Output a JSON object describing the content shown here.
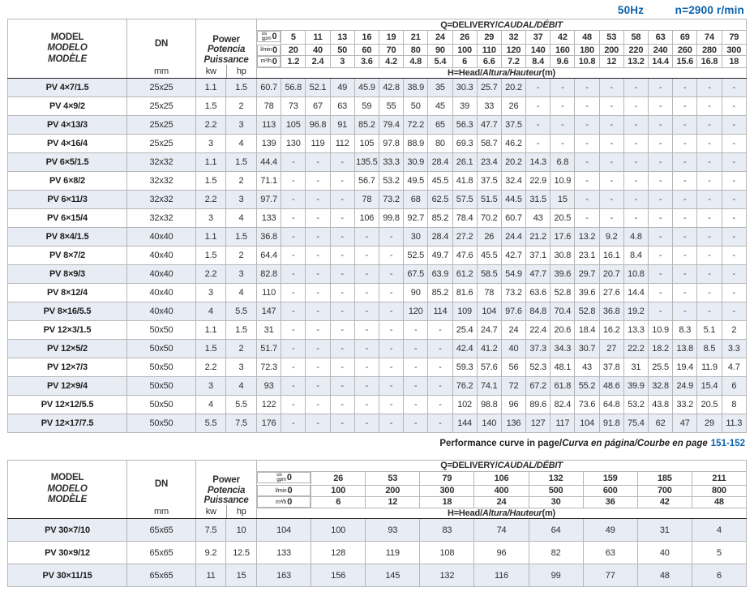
{
  "page": {
    "frequency": "50Hz",
    "speed": "n=2900 r/min"
  },
  "colors": {
    "accent_blue": "#0b62ab",
    "row_shade": "#e8ecf4"
  },
  "labels": {
    "model_lines": [
      "MODEL",
      "MODELO",
      "MODÈLE"
    ],
    "dn": "DN",
    "dn_unit": "mm",
    "power_lines": [
      "Power",
      "Potencia",
      "Puissance"
    ],
    "kw": "kw",
    "hp": "hp",
    "q_title_main": "Q=DELIVERY/",
    "q_title_alt": "CAUDAL/DÉBIT",
    "h_title_main": "H=Head/",
    "h_title_alt": "Altura/Hauteur",
    "h_title_unit": "(m)",
    "unit_gpm_top": "us",
    "unit_gpm": "gpm",
    "unit_lmin": "l/min",
    "unit_m3h": "m³/h"
  },
  "table1": {
    "flow_gpm": [
      "0",
      "5",
      "11",
      "13",
      "16",
      "19",
      "21",
      "24",
      "26",
      "29",
      "32",
      "37",
      "42",
      "48",
      "53",
      "58",
      "63",
      "69",
      "74",
      "79"
    ],
    "flow_lmin": [
      "0",
      "20",
      "40",
      "50",
      "60",
      "70",
      "80",
      "90",
      "100",
      "110",
      "120",
      "140",
      "160",
      "180",
      "200",
      "220",
      "240",
      "260",
      "280",
      "300"
    ],
    "flow_m3h": [
      "0",
      "1.2",
      "2.4",
      "3",
      "3.6",
      "4.2",
      "4.8",
      "5.4",
      "6",
      "6.6",
      "7.2",
      "8.4",
      "9.6",
      "10.8",
      "12",
      "13.2",
      "14.4",
      "15.6",
      "16.8",
      "18"
    ],
    "rows": [
      {
        "model": "PV 4×7/1.5",
        "dn": "25x25",
        "kw": "1.1",
        "hp": "1.5",
        "heads": [
          "60.7",
          "56.8",
          "52.1",
          "49",
          "45.9",
          "42.8",
          "38.9",
          "35",
          "30.3",
          "25.7",
          "20.2",
          "-",
          "-",
          "-",
          "-",
          "-",
          "-",
          "-",
          "-",
          "-"
        ]
      },
      {
        "model": "PV 4×9/2",
        "dn": "25x25",
        "kw": "1.5",
        "hp": "2",
        "heads": [
          "78",
          "73",
          "67",
          "63",
          "59",
          "55",
          "50",
          "45",
          "39",
          "33",
          "26",
          "-",
          "-",
          "-",
          "-",
          "-",
          "-",
          "-",
          "-",
          "-"
        ]
      },
      {
        "model": "PV 4×13/3",
        "dn": "25x25",
        "kw": "2.2",
        "hp": "3",
        "heads": [
          "113",
          "105",
          "96.8",
          "91",
          "85.2",
          "79.4",
          "72.2",
          "65",
          "56.3",
          "47.7",
          "37.5",
          "-",
          "-",
          "-",
          "-",
          "-",
          "-",
          "-",
          "-",
          "-"
        ]
      },
      {
        "model": "PV 4×16/4",
        "dn": "25x25",
        "kw": "3",
        "hp": "4",
        "heads": [
          "139",
          "130",
          "119",
          "112",
          "105",
          "97.8",
          "88.9",
          "80",
          "69.3",
          "58.7",
          "46.2",
          "-",
          "-",
          "-",
          "-",
          "-",
          "-",
          "-",
          "-",
          "-"
        ]
      },
      {
        "model": "PV 6×5/1.5",
        "dn": "32x32",
        "kw": "1.1",
        "hp": "1.5",
        "group_start": true,
        "heads": [
          "44.4",
          "-",
          "-",
          "-",
          "135.5",
          "33.3",
          "30.9",
          "28.4",
          "26.1",
          "23.4",
          "20.2",
          "14.3",
          "6.8",
          "-",
          "-",
          "-",
          "-",
          "-",
          "-",
          "-"
        ]
      },
      {
        "model": "PV 6×8/2",
        "dn": "32x32",
        "kw": "1.5",
        "hp": "2",
        "heads": [
          "71.1",
          "-",
          "-",
          "-",
          "56.7",
          "53.2",
          "49.5",
          "45.5",
          "41.8",
          "37.5",
          "32.4",
          "22.9",
          "10.9",
          "-",
          "-",
          "-",
          "-",
          "-",
          "-",
          "-"
        ]
      },
      {
        "model": "PV 6×11/3",
        "dn": "32x32",
        "kw": "2.2",
        "hp": "3",
        "heads": [
          "97.7",
          "-",
          "-",
          "-",
          "78",
          "73.2",
          "68",
          "62.5",
          "57.5",
          "51.5",
          "44.5",
          "31.5",
          "15",
          "-",
          "-",
          "-",
          "-",
          "-",
          "-",
          "-"
        ]
      },
      {
        "model": "PV 6×15/4",
        "dn": "32x32",
        "kw": "3",
        "hp": "4",
        "heads": [
          "133",
          "-",
          "-",
          "-",
          "106",
          "99.8",
          "92.7",
          "85.2",
          "78.4",
          "70.2",
          "60.7",
          "43",
          "20.5",
          "-",
          "-",
          "-",
          "-",
          "-",
          "-",
          "-"
        ]
      },
      {
        "model": "PV 8×4/1.5",
        "dn": "40x40",
        "kw": "1.1",
        "hp": "1.5",
        "group_start": true,
        "heads": [
          "36.8",
          "-",
          "-",
          "-",
          "-",
          "-",
          "30",
          "28.4",
          "27.2",
          "26",
          "24.4",
          "21.2",
          "17.6",
          "13.2",
          "9.2",
          "4.8",
          "-",
          "-",
          "-",
          "-"
        ]
      },
      {
        "model": "PV 8×7/2",
        "dn": "40x40",
        "kw": "1.5",
        "hp": "2",
        "heads": [
          "64.4",
          "-",
          "-",
          "-",
          "-",
          "-",
          "52.5",
          "49.7",
          "47.6",
          "45.5",
          "42.7",
          "37.1",
          "30.8",
          "23.1",
          "16.1",
          "8.4",
          "-",
          "-",
          "-",
          "-"
        ]
      },
      {
        "model": "PV 8×9/3",
        "dn": "40x40",
        "kw": "2.2",
        "hp": "3",
        "heads": [
          "82.8",
          "-",
          "-",
          "-",
          "-",
          "-",
          "67.5",
          "63.9",
          "61.2",
          "58.5",
          "54.9",
          "47.7",
          "39.6",
          "29.7",
          "20.7",
          "10.8",
          "-",
          "-",
          "-",
          "-"
        ]
      },
      {
        "model": "PV 8×12/4",
        "dn": "40x40",
        "kw": "3",
        "hp": "4",
        "heads": [
          "110",
          "-",
          "-",
          "-",
          "-",
          "-",
          "90",
          "85.2",
          "81.6",
          "78",
          "73.2",
          "63.6",
          "52.8",
          "39.6",
          "27.6",
          "14.4",
          "-",
          "-",
          "-",
          "-"
        ]
      },
      {
        "model": "PV 8×16/5.5",
        "dn": "40x40",
        "kw": "4",
        "hp": "5.5",
        "heads": [
          "147",
          "-",
          "-",
          "-",
          "-",
          "-",
          "120",
          "114",
          "109",
          "104",
          "97.6",
          "84.8",
          "70.4",
          "52.8",
          "36.8",
          "19.2",
          "-",
          "-",
          "-",
          "-"
        ]
      },
      {
        "model": "PV 12×3/1.5",
        "dn": "50x50",
        "kw": "1.1",
        "hp": "1.5",
        "group_start": true,
        "heads": [
          "31",
          "-",
          "-",
          "-",
          "-",
          "-",
          "-",
          "-",
          "25.4",
          "24.7",
          "24",
          "22.4",
          "20.6",
          "18.4",
          "16.2",
          "13.3",
          "10.9",
          "8.3",
          "5.1",
          "2"
        ]
      },
      {
        "model": "PV 12×5/2",
        "dn": "50x50",
        "kw": "1.5",
        "hp": "2",
        "heads": [
          "51.7",
          "-",
          "-",
          "-",
          "-",
          "-",
          "-",
          "-",
          "42.4",
          "41.2",
          "40",
          "37.3",
          "34.3",
          "30.7",
          "27",
          "22.2",
          "18.2",
          "13.8",
          "8.5",
          "3.3"
        ]
      },
      {
        "model": "PV 12×7/3",
        "dn": "50x50",
        "kw": "2.2",
        "hp": "3",
        "heads": [
          "72.3",
          "-",
          "-",
          "-",
          "-",
          "-",
          "-",
          "-",
          "59.3",
          "57.6",
          "56",
          "52.3",
          "48.1",
          "43",
          "37.8",
          "31",
          "25.5",
          "19.4",
          "11.9",
          "4.7"
        ]
      },
      {
        "model": "PV 12×9/4",
        "dn": "50x50",
        "kw": "3",
        "hp": "4",
        "heads": [
          "93",
          "-",
          "-",
          "-",
          "-",
          "-",
          "-",
          "-",
          "76.2",
          "74.1",
          "72",
          "67.2",
          "61.8",
          "55.2",
          "48.6",
          "39.9",
          "32.8",
          "24.9",
          "15.4",
          "6"
        ]
      },
      {
        "model": "PV 12×12/5.5",
        "dn": "50x50",
        "kw": "4",
        "hp": "5.5",
        "heads": [
          "122",
          "-",
          "-",
          "-",
          "-",
          "-",
          "-",
          "-",
          "102",
          "98.8",
          "96",
          "89.6",
          "82.4",
          "73.6",
          "64.8",
          "53.2",
          "43.8",
          "33.2",
          "20.5",
          "8"
        ]
      },
      {
        "model": "PV 12×17/7.5",
        "dn": "50x50",
        "kw": "5.5",
        "hp": "7.5",
        "heads": [
          "176",
          "-",
          "-",
          "-",
          "-",
          "-",
          "-",
          "-",
          "144",
          "140",
          "136",
          "127",
          "117",
          "104",
          "91.8",
          "75.4",
          "62",
          "47",
          "29",
          "11.3"
        ]
      }
    ]
  },
  "footnote": {
    "main": "Performance curve in page/",
    "alt": "Curva en página/Courbe en page",
    "pages": "151-152"
  },
  "table2": {
    "flow_gpm": [
      "0",
      "26",
      "53",
      "79",
      "106",
      "132",
      "159",
      "185",
      "211"
    ],
    "flow_lmin": [
      "0",
      "100",
      "200",
      "300",
      "400",
      "500",
      "600",
      "700",
      "800"
    ],
    "flow_m3h": [
      "0",
      "6",
      "12",
      "18",
      "24",
      "30",
      "36",
      "42",
      "48"
    ],
    "rows": [
      {
        "model": "PV 30×7/10",
        "dn": "65x65",
        "kw": "7.5",
        "hp": "10",
        "heads": [
          "104",
          "100",
          "93",
          "83",
          "74",
          "64",
          "49",
          "31",
          "4"
        ]
      },
      {
        "model": "PV 30×9/12",
        "dn": "65x65",
        "kw": "9.2",
        "hp": "12.5",
        "heads": [
          "133",
          "128",
          "119",
          "108",
          "96",
          "82",
          "63",
          "40",
          "5"
        ]
      },
      {
        "model": "PV 30×11/15",
        "dn": "65x65",
        "kw": "11",
        "hp": "15",
        "heads": [
          "163",
          "156",
          "145",
          "132",
          "116",
          "99",
          "77",
          "48",
          "6"
        ]
      }
    ]
  }
}
